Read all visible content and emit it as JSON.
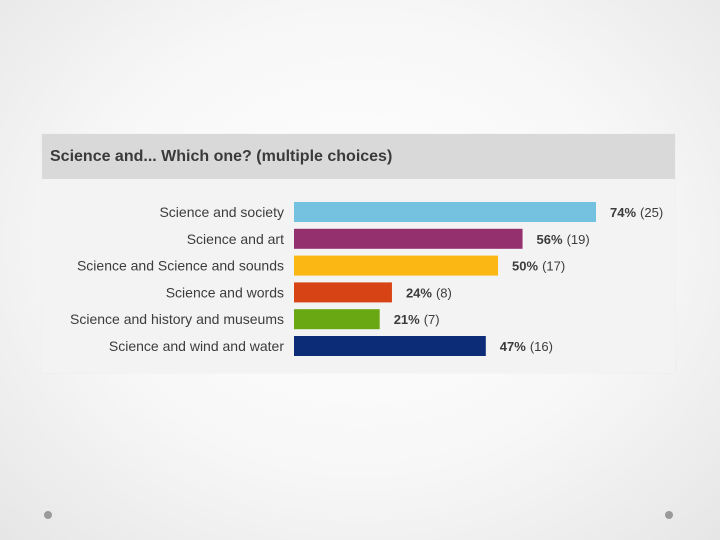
{
  "chart_data": {
    "type": "bar",
    "orientation": "horizontal",
    "title": "Science and... Which one? (multiple choices)",
    "categories": [
      "Science and society",
      "Science and art",
      "Science and Science and sounds",
      "Science and words",
      "Science and history and museums",
      "Science and wind and water"
    ],
    "values": [
      74,
      56,
      50,
      24,
      21,
      47
    ],
    "counts": [
      25,
      19,
      17,
      8,
      7,
      16
    ],
    "value_labels": [
      "74%",
      "56%",
      "50%",
      "24%",
      "21%",
      "47%"
    ],
    "count_labels": [
      "(25)",
      "(19)",
      "(17)",
      "(8)",
      "(7)",
      "(16)"
    ],
    "colors": [
      "#74c2e0",
      "#95306f",
      "#fbb714",
      "#d84315",
      "#69a812",
      "#0d2c78"
    ],
    "xlim": [
      0,
      74
    ],
    "grid": false,
    "legend": "none"
  }
}
